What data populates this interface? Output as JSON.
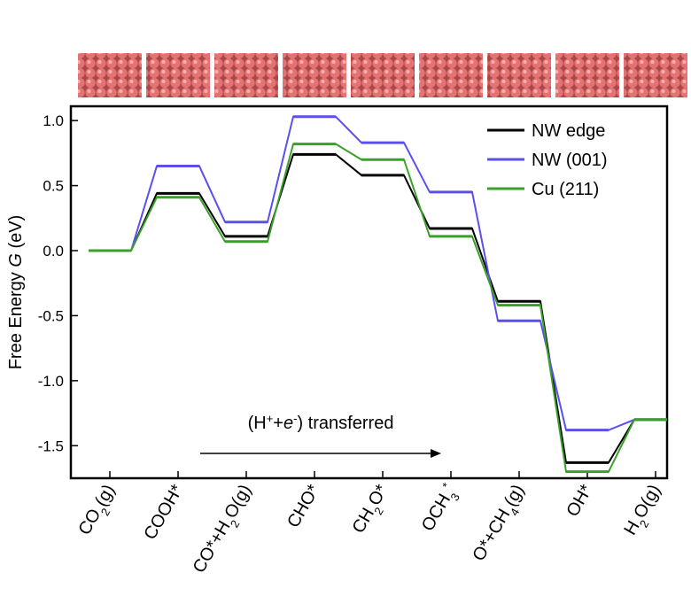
{
  "chart_data": {
    "type": "step-line",
    "categories": [
      "CO2(g)",
      "COOH*",
      "CO*+H2O(g)",
      "CHO*",
      "CH2O*",
      "OCH3*",
      "O*+CH4(g)",
      "OH*",
      "H2O(g)"
    ],
    "category_colors": [
      "#000000",
      "#000000",
      "#e8261e",
      "#e8261e",
      "#000000",
      "#000000",
      "#000000",
      "#000000",
      "#000000"
    ],
    "series": [
      {
        "name": "NW edge",
        "color": "#000000",
        "values": [
          0,
          0.44,
          0.11,
          0.74,
          0.58,
          0.17,
          -0.39,
          -1.63,
          -1.3
        ]
      },
      {
        "name": "NW (001)",
        "color": "#5b4ff0",
        "values": [
          0,
          0.65,
          0.22,
          1.03,
          0.83,
          0.45,
          -0.54,
          -1.38,
          -1.3
        ]
      },
      {
        "name": "Cu (211)",
        "color": "#3aa02a",
        "values": [
          0,
          0.41,
          0.07,
          0.82,
          0.7,
          0.11,
          -0.42,
          -1.7,
          -1.3
        ]
      }
    ],
    "y_label": "Free Energy G (eV)",
    "annotation": "(H++e-) transferred",
    "ylim": [
      -1.75,
      1.11
    ],
    "yticks": [
      {
        "value": 1.0,
        "label": "1.0"
      },
      {
        "value": 0.5,
        "label": "0.5"
      },
      {
        "value": 0,
        "label": "0.0"
      },
      {
        "value": -0.5,
        "label": "-0.5"
      },
      {
        "value": -1.0,
        "label": "-1.0"
      },
      {
        "value": -1.5,
        "label": "-1.5"
      }
    ],
    "legend": "top-right"
  }
}
